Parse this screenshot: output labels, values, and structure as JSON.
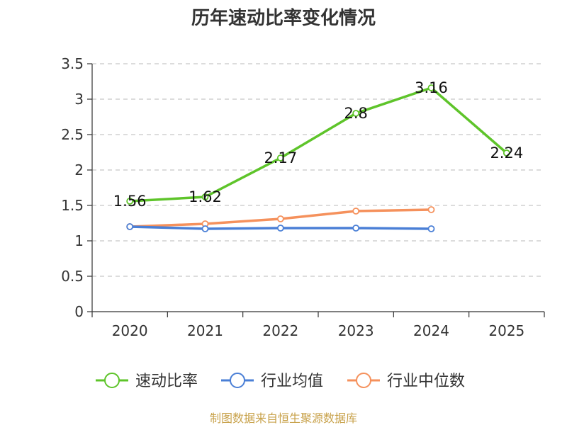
{
  "chart_data": {
    "type": "line",
    "title": "历年速动比率变化情况",
    "categories": [
      "2020",
      "2021",
      "2022",
      "2023",
      "2024",
      "2025"
    ],
    "y_ticks": [
      "0",
      "0.5",
      "1",
      "1.5",
      "2",
      "2.5",
      "3",
      "3.5"
    ],
    "ylim": [
      0,
      3.5
    ],
    "grid": true,
    "legend_position": "bottom",
    "series": [
      {
        "name": "速动比率",
        "color": "#5ec42a",
        "values": [
          1.56,
          1.62,
          2.17,
          2.8,
          3.16,
          2.24
        ],
        "labels": [
          "1.56",
          "1.62",
          "2.17",
          "2.8",
          "3.16",
          "2.24"
        ],
        "show_labels": true
      },
      {
        "name": "行业均值",
        "color": "#4a7fd6",
        "values": [
          1.2,
          1.17,
          1.18,
          1.18,
          1.17,
          null
        ],
        "show_labels": false
      },
      {
        "name": "行业中位数",
        "color": "#f5915c",
        "values": [
          1.2,
          1.24,
          1.31,
          1.42,
          1.44,
          null
        ],
        "show_labels": false
      }
    ]
  },
  "source_text": "制图数据来自恒生聚源数据库"
}
